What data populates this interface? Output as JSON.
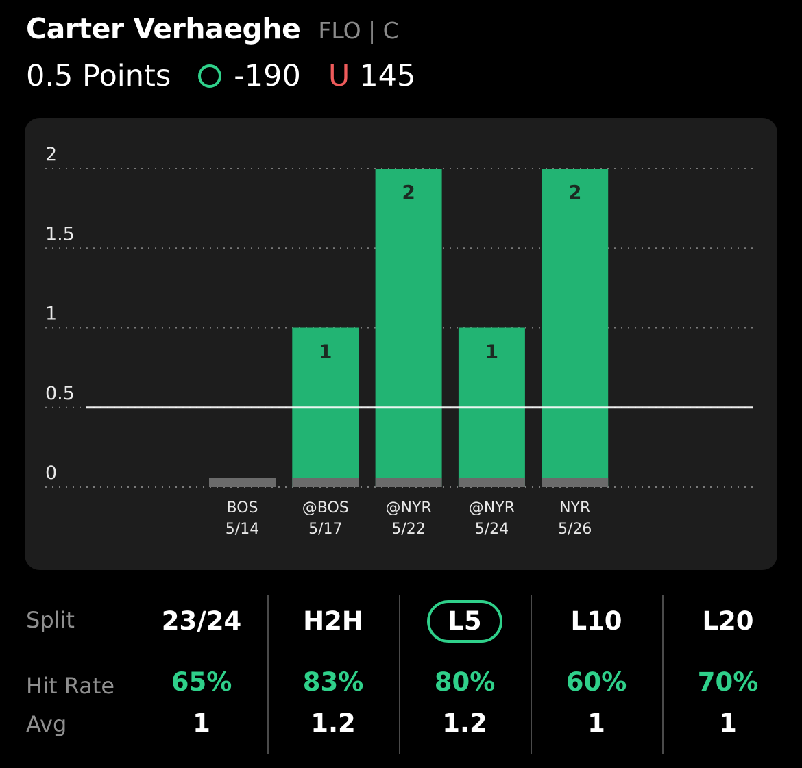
{
  "player": {
    "name": "Carter Verhaeghe",
    "team_pos": "FLO | C"
  },
  "line": {
    "prop": "0.5 Points",
    "over_symbol": "O",
    "over_odds": "-190",
    "under_symbol": "U",
    "under_odds": "145"
  },
  "colors": {
    "over": "#2fd08a",
    "under": "#ef5b5b",
    "bar": "#22b473",
    "bar_base": "#6b6b6b",
    "card": "#1d1d1d"
  },
  "chart_data": {
    "type": "bar",
    "categories": [
      "BOS 5/14",
      "@BOS 5/17",
      "@NYR 5/22",
      "@NYR 5/24",
      "NYR 5/26"
    ],
    "category_lines": [
      [
        "BOS",
        "5/14"
      ],
      [
        "@BOS",
        "5/17"
      ],
      [
        "@NYR",
        "5/22"
      ],
      [
        "@NYR",
        "5/24"
      ],
      [
        "NYR",
        "5/26"
      ]
    ],
    "values": [
      0,
      1,
      2,
      1,
      2
    ],
    "data_labels": [
      "",
      "1",
      "2",
      "1",
      "2"
    ],
    "yticks": [
      "0",
      "0.5",
      "1",
      "1.5",
      "2"
    ],
    "ytick_values": [
      0,
      0.5,
      1,
      1.5,
      2
    ],
    "ylim": [
      0,
      2
    ],
    "threshold": 0.5,
    "grid": true
  },
  "splits": {
    "row_labels": {
      "split": "Split",
      "hit_rate": "Hit Rate",
      "avg": "Avg"
    },
    "columns": [
      {
        "label": "23/24",
        "hit_rate": "65%",
        "avg": "1",
        "active": false
      },
      {
        "label": "H2H",
        "hit_rate": "83%",
        "avg": "1.2",
        "active": false
      },
      {
        "label": "L5",
        "hit_rate": "80%",
        "avg": "1.2",
        "active": true
      },
      {
        "label": "L10",
        "hit_rate": "60%",
        "avg": "1",
        "active": false
      },
      {
        "label": "L20",
        "hit_rate": "70%",
        "avg": "1",
        "active": false
      }
    ]
  }
}
